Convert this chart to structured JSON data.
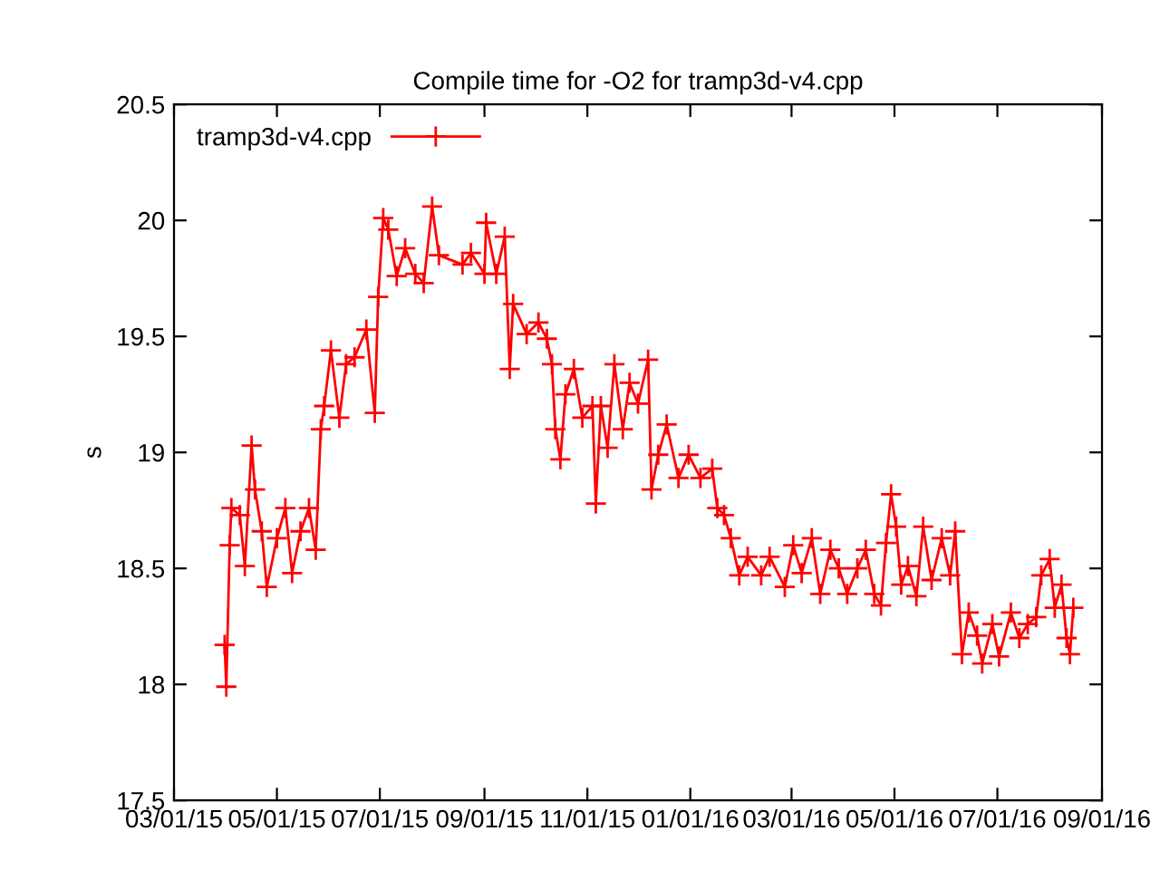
{
  "chart_data": {
    "type": "line",
    "title": "Compile time for -O2 for tramp3d-v4.cpp",
    "ylabel": "s",
    "marker": "cross",
    "line_style": "solid",
    "legend": "top left",
    "grid": false,
    "xlim": [
      "2015-03-01",
      "2016-09-01"
    ],
    "ylim": [
      17.5,
      20.5
    ],
    "yticks": [
      17.5,
      18,
      18.5,
      19,
      19.5,
      20,
      20.5
    ],
    "xticks": [
      {
        "value": "2015-03-01",
        "label": "03/01/15"
      },
      {
        "value": "2015-05-01",
        "label": "05/01/15"
      },
      {
        "value": "2015-07-01",
        "label": "07/01/15"
      },
      {
        "value": "2015-09-01",
        "label": "09/01/15"
      },
      {
        "value": "2015-11-01",
        "label": "11/01/15"
      },
      {
        "value": "2016-01-01",
        "label": "01/01/16"
      },
      {
        "value": "2016-03-01",
        "label": "03/01/16"
      },
      {
        "value": "2016-05-01",
        "label": "05/01/16"
      },
      {
        "value": "2016-07-01",
        "label": "07/01/16"
      },
      {
        "value": "2016-09-01",
        "label": "09/01/16"
      }
    ],
    "series": [
      {
        "name": "tramp3d-v4.cpp",
        "color": "#ff0000",
        "x": [
          "2015-03-31",
          "2015-04-01",
          "2015-04-03",
          "2015-04-04",
          "2015-04-09",
          "2015-04-12",
          "2015-04-16",
          "2015-04-18",
          "2015-04-22",
          "2015-04-25",
          "2015-05-01",
          "2015-05-06",
          "2015-05-10",
          "2015-05-15",
          "2015-05-20",
          "2015-05-24",
          "2015-05-27",
          "2015-05-29",
          "2015-06-02",
          "2015-06-07",
          "2015-06-11",
          "2015-06-16",
          "2015-06-23",
          "2015-06-28",
          "2015-06-30",
          "2015-07-03",
          "2015-07-06",
          "2015-07-11",
          "2015-07-16",
          "2015-07-22",
          "2015-07-27",
          "2015-08-01",
          "2015-08-05",
          "2015-08-19",
          "2015-08-24",
          "2015-09-01",
          "2015-09-02",
          "2015-09-08",
          "2015-09-13",
          "2015-09-16",
          "2015-09-18",
          "2015-09-26",
          "2015-10-03",
          "2015-10-08",
          "2015-10-11",
          "2015-10-13",
          "2015-10-16",
          "2015-10-19",
          "2015-10-24",
          "2015-10-29",
          "2015-11-04",
          "2015-11-06",
          "2015-11-09",
          "2015-11-13",
          "2015-11-17",
          "2015-11-22",
          "2015-11-26",
          "2015-12-01",
          "2015-12-07",
          "2015-12-09",
          "2015-12-13",
          "2015-12-18",
          "2015-12-25",
          "2015-12-31",
          "2016-01-07",
          "2016-01-14",
          "2016-01-17",
          "2016-01-21",
          "2016-01-25",
          "2016-01-30",
          "2016-02-04",
          "2016-02-12",
          "2016-02-17",
          "2016-02-26",
          "2016-03-02",
          "2016-03-07",
          "2016-03-13",
          "2016-03-18",
          "2016-03-24",
          "2016-03-29",
          "2016-04-03",
          "2016-04-09",
          "2016-04-14",
          "2016-04-19",
          "2016-04-23",
          "2016-04-26",
          "2016-04-29",
          "2016-05-02",
          "2016-05-05",
          "2016-05-09",
          "2016-05-14",
          "2016-05-18",
          "2016-05-23",
          "2016-05-29",
          "2016-06-03",
          "2016-06-06",
          "2016-06-10",
          "2016-06-14",
          "2016-06-19",
          "2016-06-22",
          "2016-06-28",
          "2016-07-02",
          "2016-07-09",
          "2016-07-14",
          "2016-07-19",
          "2016-07-24",
          "2016-07-27",
          "2016-08-01",
          "2016-08-04",
          "2016-08-08",
          "2016-08-11",
          "2016-08-13",
          "2016-08-15"
        ],
        "values": [
          18.17,
          17.99,
          18.6,
          18.76,
          18.73,
          18.51,
          19.03,
          18.84,
          18.66,
          18.42,
          18.63,
          18.76,
          18.48,
          18.66,
          18.76,
          18.58,
          19.1,
          19.2,
          19.44,
          19.15,
          19.38,
          19.41,
          19.53,
          19.17,
          19.67,
          20.01,
          19.96,
          19.76,
          19.88,
          19.77,
          19.73,
          20.06,
          19.85,
          19.81,
          19.86,
          19.77,
          19.99,
          19.77,
          19.93,
          19.36,
          19.64,
          19.51,
          19.56,
          19.49,
          19.38,
          19.1,
          18.97,
          19.25,
          19.36,
          19.15,
          19.2,
          18.78,
          19.2,
          19.02,
          19.38,
          19.1,
          19.3,
          19.21,
          19.4,
          18.84,
          18.99,
          19.12,
          18.89,
          18.99,
          18.89,
          18.93,
          18.76,
          18.73,
          18.63,
          18.47,
          18.55,
          18.47,
          18.55,
          18.42,
          18.6,
          18.48,
          18.63,
          18.39,
          18.58,
          18.5,
          18.39,
          18.5,
          18.58,
          18.39,
          18.34,
          18.61,
          18.82,
          18.68,
          18.43,
          18.51,
          18.38,
          18.68,
          18.45,
          18.63,
          18.47,
          18.66,
          18.13,
          18.31,
          18.21,
          18.09,
          18.26,
          18.12,
          18.31,
          18.2,
          18.26,
          18.29,
          18.47,
          18.54,
          18.33,
          18.43,
          18.2,
          18.13,
          18.33
        ]
      }
    ]
  }
}
